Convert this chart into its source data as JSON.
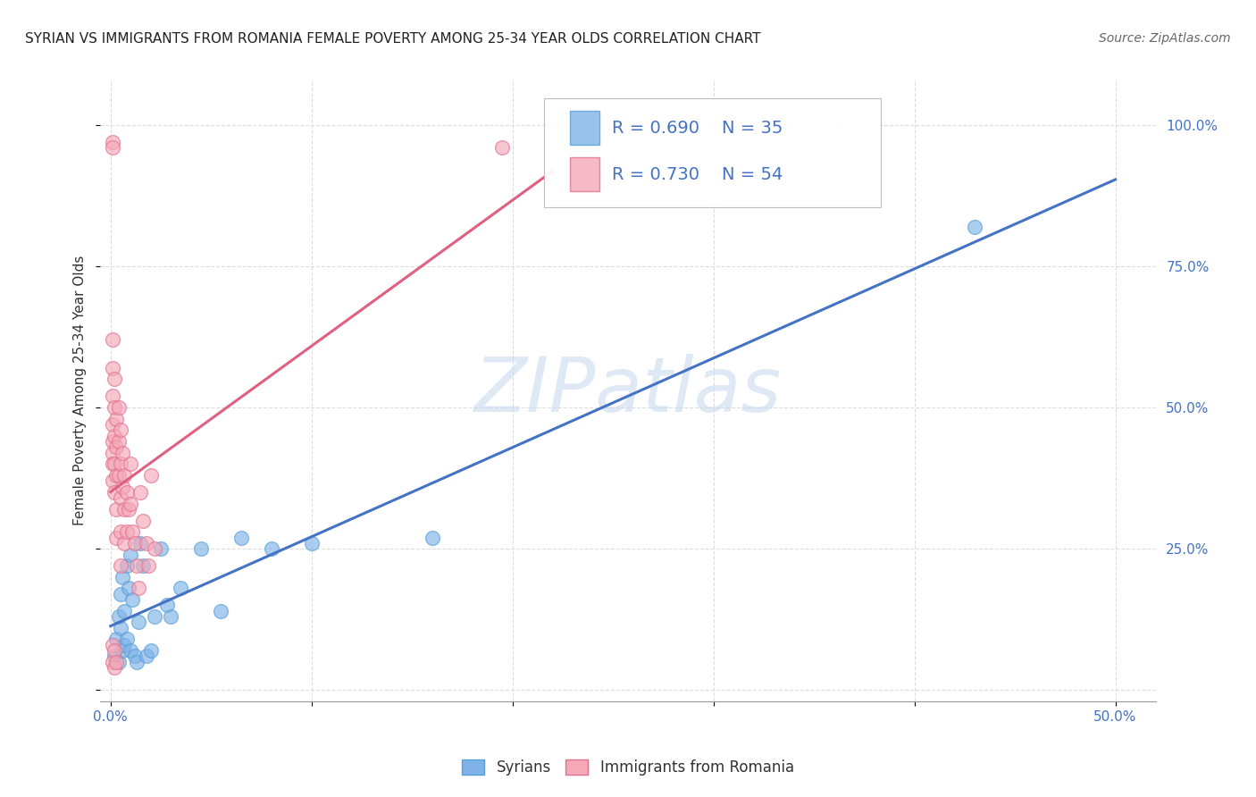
{
  "title": "SYRIAN VS IMMIGRANTS FROM ROMANIA FEMALE POVERTY AMONG 25-34 YEAR OLDS CORRELATION CHART",
  "source": "Source: ZipAtlas.com",
  "ylabel": "Female Poverty Among 25-34 Year Olds",
  "xlim": [
    -0.005,
    0.52
  ],
  "ylim": [
    -0.02,
    1.08
  ],
  "background_color": "#ffffff",
  "grid_color": "#dddddd",
  "watermark_text": "ZIPatlas",
  "blue_color": "#7fb3e8",
  "blue_edge_color": "#5a9fd4",
  "pink_color": "#f4a8b8",
  "pink_edge_color": "#e07090",
  "blue_line_color": "#4472c4",
  "pink_line_color": "#e06080",
  "legend_R_blue": "0.690",
  "legend_N_blue": "35",
  "legend_R_pink": "0.730",
  "legend_N_pink": "54",
  "title_fontsize": 11,
  "source_fontsize": 10,
  "ylabel_fontsize": 11,
  "tick_fontsize": 11,
  "legend_fontsize": 14,
  "blue_x": [
    0.002,
    0.003,
    0.004,
    0.004,
    0.005,
    0.005,
    0.006,
    0.006,
    0.007,
    0.007,
    0.008,
    0.008,
    0.009,
    0.01,
    0.01,
    0.011,
    0.012,
    0.013,
    0.014,
    0.015,
    0.016,
    0.018,
    0.02,
    0.022,
    0.025,
    0.028,
    0.03,
    0.035,
    0.045,
    0.055,
    0.065,
    0.08,
    0.1,
    0.16,
    0.43
  ],
  "blue_y": [
    0.06,
    0.09,
    0.05,
    0.13,
    0.11,
    0.17,
    0.07,
    0.2,
    0.08,
    0.14,
    0.22,
    0.09,
    0.18,
    0.24,
    0.07,
    0.16,
    0.06,
    0.05,
    0.12,
    0.26,
    0.22,
    0.06,
    0.07,
    0.13,
    0.25,
    0.15,
    0.13,
    0.18,
    0.25,
    0.14,
    0.27,
    0.25,
    0.26,
    0.27,
    0.82
  ],
  "pink_x": [
    0.001,
    0.001,
    0.001,
    0.001,
    0.001,
    0.001,
    0.001,
    0.001,
    0.001,
    0.001,
    0.002,
    0.002,
    0.002,
    0.002,
    0.002,
    0.003,
    0.003,
    0.003,
    0.003,
    0.003,
    0.004,
    0.004,
    0.004,
    0.005,
    0.005,
    0.005,
    0.005,
    0.005,
    0.006,
    0.006,
    0.007,
    0.007,
    0.007,
    0.008,
    0.008,
    0.009,
    0.01,
    0.01,
    0.011,
    0.012,
    0.013,
    0.014,
    0.015,
    0.016,
    0.018,
    0.019,
    0.02,
    0.022,
    0.001,
    0.001,
    0.002,
    0.002,
    0.003,
    0.195
  ],
  "pink_y": [
    0.97,
    0.96,
    0.62,
    0.57,
    0.52,
    0.47,
    0.44,
    0.42,
    0.4,
    0.37,
    0.55,
    0.5,
    0.45,
    0.4,
    0.35,
    0.48,
    0.43,
    0.38,
    0.32,
    0.27,
    0.5,
    0.44,
    0.38,
    0.46,
    0.4,
    0.34,
    0.28,
    0.22,
    0.42,
    0.36,
    0.38,
    0.32,
    0.26,
    0.35,
    0.28,
    0.32,
    0.4,
    0.33,
    0.28,
    0.26,
    0.22,
    0.18,
    0.35,
    0.3,
    0.26,
    0.22,
    0.38,
    0.25,
    0.08,
    0.05,
    0.07,
    0.04,
    0.05,
    0.96
  ]
}
